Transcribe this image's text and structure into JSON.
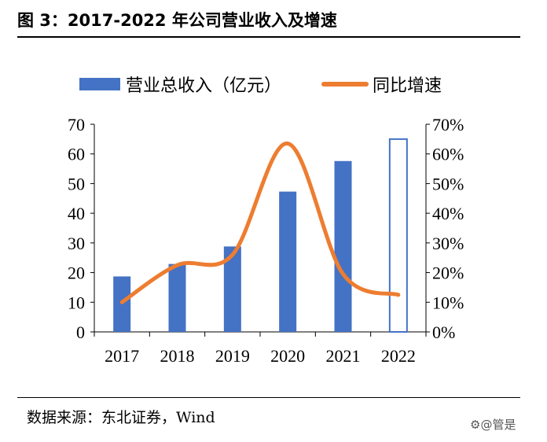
{
  "title": "图 3：2017-2022 年公司营业收入及增速",
  "source": "数据来源：东北证券，Wind",
  "watermark": "⚙@管是",
  "colors": {
    "bar": "#4472C4",
    "line": "#ED7D31",
    "axis": "#000000"
  },
  "chart_data": {
    "type": "bar+line",
    "categories": [
      "2017",
      "2018",
      "2019",
      "2020",
      "2021",
      "2022"
    ],
    "series": [
      {
        "name": "营业总收入（亿元）",
        "type": "bar",
        "axis": "left",
        "values": [
          18.7,
          22.9,
          28.8,
          47.3,
          57.6,
          65.0
        ],
        "estimated": [
          false,
          false,
          false,
          false,
          false,
          true
        ]
      },
      {
        "name": "同比增速",
        "type": "line",
        "axis": "right",
        "values": [
          0.1,
          0.225,
          0.26,
          0.635,
          0.195,
          0.125
        ]
      }
    ],
    "y_left": {
      "min": 0,
      "max": 70,
      "ticks": [
        "0",
        "10",
        "20",
        "30",
        "40",
        "50",
        "60",
        "70"
      ]
    },
    "y_right": {
      "min": 0,
      "max": 0.7,
      "ticks": [
        "0%",
        "10%",
        "20%",
        "30%",
        "40%",
        "50%",
        "60%",
        "70%"
      ]
    },
    "legend_position": "top",
    "grid": false
  }
}
